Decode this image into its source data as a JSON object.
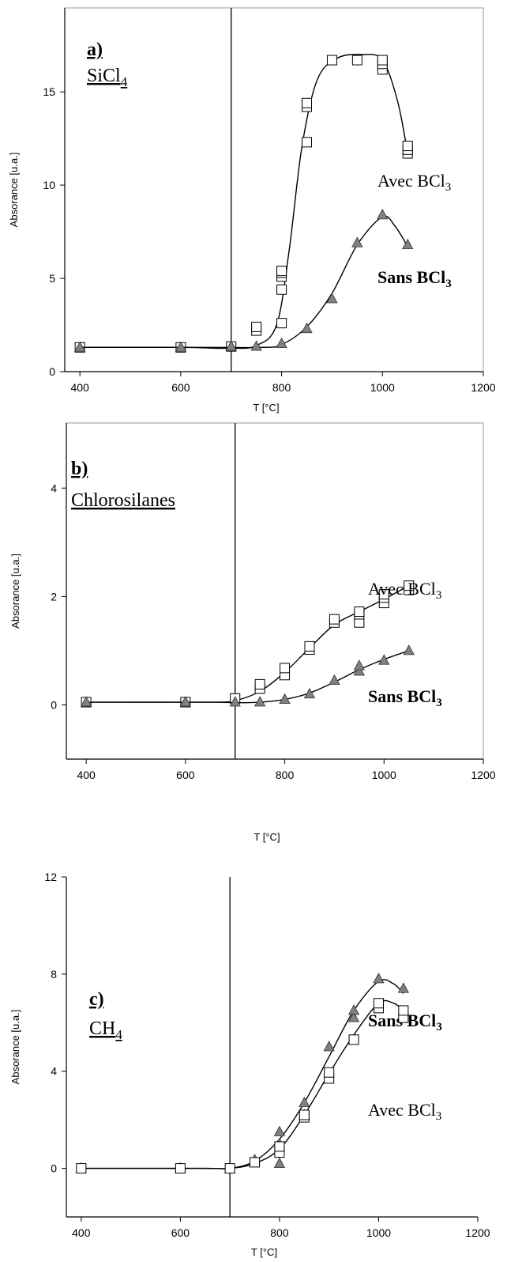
{
  "chart_data": [
    {
      "type": "scatter",
      "panel_label": "a)",
      "panel_title": "SiCl",
      "panel_title_sub": "4",
      "xlabel": "T [°C]",
      "ylabel": "Absorance [u.a.]",
      "xlim": [
        370,
        1200
      ],
      "ylim": [
        0,
        19.5
      ],
      "xticks": [
        400,
        600,
        800,
        1000,
        1200
      ],
      "yticks": [
        0,
        5,
        10,
        15
      ],
      "vline_x": 700,
      "series": [
        {
          "name": "Avec BCl",
          "name_sub": "3",
          "marker": "square",
          "points": [
            [
              400,
              1.3
            ],
            [
              600,
              1.3
            ],
            [
              700,
              1.35
            ],
            [
              750,
              2.2
            ],
            [
              750,
              2.4
            ],
            [
              800,
              2.6
            ],
            [
              800,
              4.4
            ],
            [
              800,
              5.1
            ],
            [
              800,
              5.3
            ],
            [
              800,
              5.4
            ],
            [
              850,
              12.3
            ],
            [
              850,
              14.2
            ],
            [
              850,
              14.4
            ],
            [
              900,
              16.7
            ],
            [
              950,
              16.7
            ],
            [
              1000,
              16.2
            ],
            [
              1000,
              16.5
            ],
            [
              1000,
              16.7
            ],
            [
              1050,
              11.7
            ],
            [
              1050,
              11.9
            ],
            [
              1050,
              12.1
            ]
          ],
          "fit": [
            [
              400,
              1.3
            ],
            [
              600,
              1.3
            ],
            [
              700,
              1.25
            ],
            [
              750,
              1.4
            ],
            [
              790,
              2.5
            ],
            [
              815,
              6.5
            ],
            [
              840,
              12.0
            ],
            [
              870,
              15.6
            ],
            [
              910,
              16.8
            ],
            [
              960,
              17.0
            ],
            [
              1000,
              16.7
            ],
            [
              1030,
              14.5
            ],
            [
              1050,
              11.7
            ]
          ]
        },
        {
          "name": "Sans BCl",
          "name_sub": "3",
          "marker": "triangle",
          "points": [
            [
              400,
              1.3
            ],
            [
              600,
              1.3
            ],
            [
              700,
              1.35
            ],
            [
              750,
              1.35
            ],
            [
              800,
              1.5
            ],
            [
              850,
              2.3
            ],
            [
              900,
              3.9
            ],
            [
              950,
              6.9
            ],
            [
              1000,
              8.4
            ],
            [
              1050,
              6.8
            ]
          ],
          "fit": [
            [
              400,
              1.3
            ],
            [
              650,
              1.3
            ],
            [
              760,
              1.3
            ],
            [
              800,
              1.45
            ],
            [
              850,
              2.4
            ],
            [
              900,
              4.2
            ],
            [
              950,
              6.8
            ],
            [
              1000,
              8.3
            ],
            [
              1025,
              7.8
            ],
            [
              1050,
              6.7
            ]
          ]
        }
      ]
    },
    {
      "type": "scatter",
      "panel_label": "b)",
      "panel_title": "Chlorosilanes",
      "panel_title_sub": "",
      "xlabel": "T [°C]",
      "ylabel": "Absorance [u.a.]",
      "xlim": [
        360,
        1200
      ],
      "ylim": [
        -1,
        5.2
      ],
      "xticks": [
        400,
        600,
        800,
        1000,
        1200
      ],
      "yticks": [
        0,
        2,
        4
      ],
      "vline_x": 700,
      "series": [
        {
          "name": "Avec BCl",
          "name_sub": "3",
          "marker": "square",
          "points": [
            [
              400,
              0.05
            ],
            [
              600,
              0.05
            ],
            [
              700,
              0.12
            ],
            [
              750,
              0.3
            ],
            [
              750,
              0.38
            ],
            [
              800,
              0.55
            ],
            [
              800,
              0.68
            ],
            [
              850,
              1.02
            ],
            [
              850,
              1.08
            ],
            [
              900,
              1.52
            ],
            [
              900,
              1.58
            ],
            [
              950,
              1.52
            ],
            [
              950,
              1.67
            ],
            [
              950,
              1.72
            ],
            [
              1000,
              1.88
            ],
            [
              1000,
              1.98
            ],
            [
              1000,
              2.04
            ],
            [
              1050,
              2.12
            ],
            [
              1050,
              2.2
            ]
          ],
          "fit": [
            [
              400,
              0.05
            ],
            [
              650,
              0.05
            ],
            [
              700,
              0.08
            ],
            [
              750,
              0.25
            ],
            [
              800,
              0.6
            ],
            [
              850,
              1.05
            ],
            [
              900,
              1.48
            ],
            [
              950,
              1.72
            ],
            [
              1000,
              1.95
            ],
            [
              1050,
              2.2
            ]
          ]
        },
        {
          "name": "Sans BCl",
          "name_sub": "3",
          "marker": "triangle",
          "points": [
            [
              400,
              0.05
            ],
            [
              600,
              0.05
            ],
            [
              700,
              0.05
            ],
            [
              750,
              0.05
            ],
            [
              800,
              0.1
            ],
            [
              850,
              0.2
            ],
            [
              900,
              0.45
            ],
            [
              950,
              0.62
            ],
            [
              950,
              0.72
            ],
            [
              1000,
              0.82
            ],
            [
              1050,
              1.0
            ]
          ],
          "fit": [
            [
              400,
              0.05
            ],
            [
              650,
              0.05
            ],
            [
              700,
              0.04
            ],
            [
              750,
              0.05
            ],
            [
              800,
              0.1
            ],
            [
              850,
              0.22
            ],
            [
              900,
              0.42
            ],
            [
              950,
              0.65
            ],
            [
              1000,
              0.84
            ],
            [
              1050,
              1.0
            ]
          ]
        }
      ]
    },
    {
      "type": "scatter",
      "panel_label": "c)",
      "panel_title": "CH",
      "panel_title_sub": "4",
      "xlabel": "T [°C]",
      "ylabel": "Absorance [u.a.]",
      "xlim": [
        370,
        1200
      ],
      "ylim": [
        -2,
        12
      ],
      "xticks": [
        400,
        600,
        800,
        1000,
        1200
      ],
      "yticks": [
        0,
        4,
        8,
        12
      ],
      "vline_x": 700,
      "series": [
        {
          "name": "Sans BCl",
          "name_sub": "3",
          "marker": "triangle",
          "points": [
            [
              400,
              0.0
            ],
            [
              600,
              0.0
            ],
            [
              700,
              0.0
            ],
            [
              750,
              0.35
            ],
            [
              800,
              0.2
            ],
            [
              800,
              1.0
            ],
            [
              800,
              1.5
            ],
            [
              850,
              2.2
            ],
            [
              850,
              2.7
            ],
            [
              900,
              5.0
            ],
            [
              950,
              6.2
            ],
            [
              950,
              6.5
            ],
            [
              1000,
              7.8
            ],
            [
              1050,
              7.4
            ]
          ],
          "fit": [
            [
              400,
              0.0
            ],
            [
              650,
              0.0
            ],
            [
              700,
              0.0
            ],
            [
              750,
              0.3
            ],
            [
              800,
              1.2
            ],
            [
              850,
              2.7
            ],
            [
              900,
              4.6
            ],
            [
              950,
              6.5
            ],
            [
              1000,
              7.7
            ],
            [
              1030,
              7.6
            ],
            [
              1050,
              7.2
            ]
          ]
        },
        {
          "name": "Avec BCl",
          "name_sub": "3",
          "marker": "square",
          "points": [
            [
              400,
              0.0
            ],
            [
              600,
              0.0
            ],
            [
              700,
              0.0
            ],
            [
              750,
              0.25
            ],
            [
              800,
              0.65
            ],
            [
              800,
              0.9
            ],
            [
              850,
              2.1
            ],
            [
              850,
              2.2
            ],
            [
              900,
              3.7
            ],
            [
              900,
              3.95
            ],
            [
              950,
              5.3
            ],
            [
              1000,
              6.6
            ],
            [
              1000,
              6.8
            ],
            [
              1050,
              6.2
            ],
            [
              1050,
              6.5
            ]
          ],
          "fit": [
            [
              400,
              0.0
            ],
            [
              650,
              0.0
            ],
            [
              700,
              0.0
            ],
            [
              750,
              0.2
            ],
            [
              800,
              0.8
            ],
            [
              850,
              2.2
            ],
            [
              900,
              3.9
            ],
            [
              950,
              5.5
            ],
            [
              1000,
              6.8
            ],
            [
              1030,
              6.8
            ],
            [
              1050,
              6.5
            ]
          ]
        }
      ]
    }
  ]
}
